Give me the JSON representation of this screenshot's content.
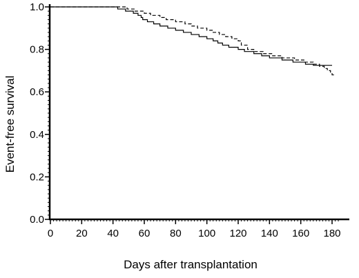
{
  "chart_data": {
    "type": "line",
    "title": "",
    "xlabel": "Days after transplantation",
    "ylabel": "Event-free survival",
    "xlim": [
      0,
      185
    ],
    "ylim": [
      0,
      1.0
    ],
    "x_ticks": [
      0,
      20,
      40,
      60,
      80,
      100,
      120,
      140,
      160,
      180
    ],
    "y_ticks": [
      0.0,
      0.2,
      0.4,
      0.6,
      0.8,
      1.0
    ],
    "x_tick_labels": [
      "0",
      "20",
      "40",
      "60",
      "80",
      "100",
      "120",
      "140",
      "160",
      "180"
    ],
    "y_tick_labels": [
      "0.0",
      "0.2",
      "0.4",
      "0.6",
      "0.8",
      "1.0"
    ],
    "grid": false,
    "legend": false,
    "series": [
      {
        "style": "solid",
        "color": "#000000",
        "points": [
          [
            0,
            1.0
          ],
          [
            42,
            1.0
          ],
          [
            43,
            0.99
          ],
          [
            48,
            0.98
          ],
          [
            53,
            0.97
          ],
          [
            56,
            0.96
          ],
          [
            58,
            0.95
          ],
          [
            59,
            0.94
          ],
          [
            62,
            0.93
          ],
          [
            66,
            0.92
          ],
          [
            70,
            0.91
          ],
          [
            75,
            0.9
          ],
          [
            80,
            0.89
          ],
          [
            85,
            0.88
          ],
          [
            90,
            0.87
          ],
          [
            95,
            0.86
          ],
          [
            100,
            0.85
          ],
          [
            104,
            0.84
          ],
          [
            107,
            0.83
          ],
          [
            110,
            0.82
          ],
          [
            114,
            0.81
          ],
          [
            120,
            0.8
          ],
          [
            124,
            0.79
          ],
          [
            130,
            0.78
          ],
          [
            135,
            0.77
          ],
          [
            140,
            0.76
          ],
          [
            148,
            0.75
          ],
          [
            155,
            0.74
          ],
          [
            163,
            0.73
          ],
          [
            168,
            0.725
          ],
          [
            180,
            0.725
          ]
        ]
      },
      {
        "style": "dashed",
        "color": "#000000",
        "points": [
          [
            0,
            1.0
          ],
          [
            48,
            1.0
          ],
          [
            49,
            0.99
          ],
          [
            54,
            0.98
          ],
          [
            60,
            0.97
          ],
          [
            64,
            0.96
          ],
          [
            70,
            0.95
          ],
          [
            74,
            0.94
          ],
          [
            80,
            0.93
          ],
          [
            86,
            0.92
          ],
          [
            90,
            0.91
          ],
          [
            94,
            0.9
          ],
          [
            100,
            0.89
          ],
          [
            104,
            0.88
          ],
          [
            108,
            0.87
          ],
          [
            112,
            0.86
          ],
          [
            116,
            0.85
          ],
          [
            120,
            0.84
          ],
          [
            122,
            0.82
          ],
          [
            126,
            0.8
          ],
          [
            130,
            0.79
          ],
          [
            136,
            0.78
          ],
          [
            142,
            0.77
          ],
          [
            148,
            0.76
          ],
          [
            156,
            0.75
          ],
          [
            162,
            0.74
          ],
          [
            168,
            0.73
          ],
          [
            172,
            0.72
          ],
          [
            175,
            0.71
          ],
          [
            177,
            0.7
          ],
          [
            179,
            0.69
          ],
          [
            180,
            0.68
          ],
          [
            181,
            0.67
          ]
        ]
      }
    ]
  }
}
